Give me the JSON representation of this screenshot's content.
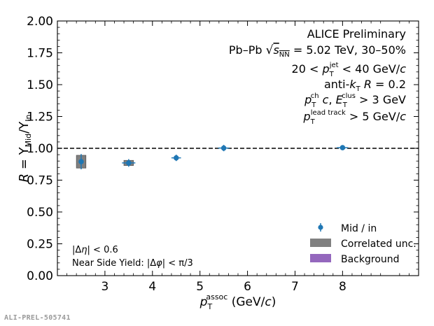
{
  "chart_data": {
    "type": "scatter",
    "experiment_label": "ALICE Preliminary",
    "collision_label": "Pb–Pb √sNN = 5.02 TeV, 30–50%",
    "cut_labels": [
      "20 < pT^jet < 40 GeV/c",
      "anti-kT R = 0.2",
      "pT^ch c, ET^clus > 3 GeV",
      "pT^lead track > 5 GeV/c"
    ],
    "xlabel": "pT^assoc (GeV/c)",
    "ylabel": "R = Y_Mid / Y_In",
    "xlim": [
      2.0,
      9.6
    ],
    "ylim": [
      0.0,
      2.0
    ],
    "xticks": [
      3,
      4,
      5,
      6,
      7,
      8
    ],
    "yticks": [
      0.0,
      0.25,
      0.5,
      0.75,
      1.0,
      1.25,
      1.5,
      1.75,
      2.0
    ],
    "reference_line": 1.0,
    "series": [
      {
        "name": "Mid / in",
        "color": "#1f77b4",
        "x": [
          2.5,
          3.5,
          4.5,
          5.5,
          8.0
        ],
        "xerr": [
          0.04,
          0.14,
          0.1,
          0.12,
          0.12
        ],
        "y": [
          0.895,
          0.885,
          0.925,
          1.002,
          1.005
        ],
        "yerr": [
          0.06,
          0.03,
          0.025,
          0.025,
          0.012
        ],
        "syst_lo": [
          0.845,
          0.865,
          0.0,
          0.0,
          0.0
        ],
        "syst_hi": [
          0.945,
          0.905,
          0.0,
          0.0,
          0.0
        ],
        "syst_halfwidth": [
          0.1,
          0.1,
          0.0,
          0.0,
          0.0
        ]
      }
    ],
    "legend": [
      {
        "label": "Mid / in",
        "kind": "marker",
        "color": "#1f77b4"
      },
      {
        "label": "Correlated unc.",
        "kind": "box",
        "color": "#808080"
      },
      {
        "label": "Background",
        "kind": "box",
        "color": "#9467bd"
      }
    ],
    "legend_position": "bottom-right",
    "notes": [
      "|Δη| < 0.6",
      "Near Side Yield: |Δφ| < π/3"
    ]
  },
  "footer_id": "ALI-PREL-505741"
}
